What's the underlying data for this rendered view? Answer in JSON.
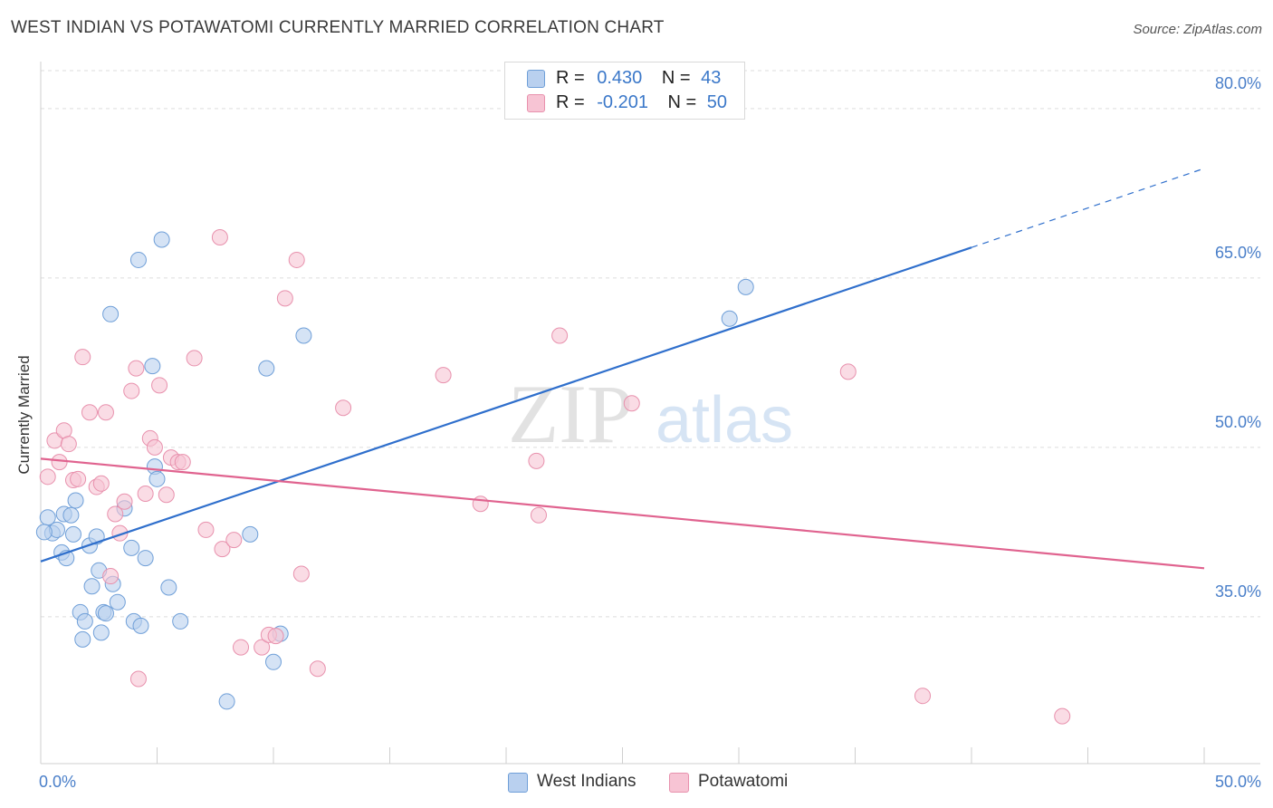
{
  "title": "WEST INDIAN VS POTAWATOMI CURRENTLY MARRIED CORRELATION CHART",
  "source": "Source: ZipAtlas.com",
  "watermark": {
    "zip": "ZIP",
    "atlas": "atlas"
  },
  "legend": {
    "rows": [
      {
        "r_label": "R =",
        "r_value": "0.430",
        "n_label": "N =",
        "n_value": "43"
      },
      {
        "r_label": "R =",
        "r_value": "-0.201",
        "n_label": "N =",
        "n_value": "50"
      }
    ]
  },
  "bottom_legend": [
    "West Indians",
    "Potawatomi"
  ],
  "colors": {
    "blue_fill": "#b9d0ef",
    "blue_stroke": "#6f9fd8",
    "blue_line": "#2f6fcc",
    "pink_fill": "#f7c4d4",
    "pink_stroke": "#e891ad",
    "pink_line": "#e0638f",
    "tick_text": "#4a7fc9",
    "grid": "#dddddd"
  },
  "chart_data": {
    "type": "scatter",
    "xlabel": "",
    "ylabel": "Currently Married",
    "xlim": [
      0,
      50
    ],
    "ylim": [
      22,
      84
    ],
    "x_tick_labels": [
      "0.0%",
      "50.0%"
    ],
    "y_ticks": [
      35,
      50,
      65,
      80
    ],
    "y_tick_labels": [
      "35.0%",
      "50.0%",
      "65.0%",
      "80.0%"
    ],
    "grid": true,
    "legend_placement": "top-center",
    "series": [
      {
        "name": "West Indians",
        "trend": {
          "x": [
            0,
            40
          ],
          "y": [
            39.9,
            67.7
          ],
          "dashed_extension_to": [
            50,
            74.7
          ]
        },
        "points": [
          [
            0.3,
            43.8
          ],
          [
            0.5,
            42.4
          ],
          [
            0.7,
            42.7
          ],
          [
            0.9,
            40.7
          ],
          [
            1.0,
            44.1
          ],
          [
            1.1,
            40.2
          ],
          [
            1.3,
            44.0
          ],
          [
            1.4,
            42.3
          ],
          [
            1.5,
            45.3
          ],
          [
            1.7,
            35.4
          ],
          [
            1.8,
            33.0
          ],
          [
            1.9,
            34.6
          ],
          [
            2.1,
            41.3
          ],
          [
            2.2,
            37.7
          ],
          [
            2.4,
            42.1
          ],
          [
            2.5,
            39.1
          ],
          [
            2.6,
            33.6
          ],
          [
            2.7,
            35.4
          ],
          [
            2.8,
            35.3
          ],
          [
            3.0,
            61.8
          ],
          [
            3.1,
            37.9
          ],
          [
            3.3,
            36.3
          ],
          [
            3.6,
            44.6
          ],
          [
            3.9,
            41.1
          ],
          [
            4.0,
            34.6
          ],
          [
            4.2,
            66.6
          ],
          [
            4.3,
            34.2
          ],
          [
            4.5,
            40.2
          ],
          [
            4.8,
            57.2
          ],
          [
            4.9,
            48.3
          ],
          [
            5.0,
            47.2
          ],
          [
            5.2,
            68.4
          ],
          [
            5.5,
            37.6
          ],
          [
            6.0,
            34.6
          ],
          [
            8.0,
            27.5
          ],
          [
            9.0,
            42.3
          ],
          [
            9.7,
            57.0
          ],
          [
            10.0,
            31.0
          ],
          [
            10.3,
            33.5
          ],
          [
            11.3,
            59.9
          ],
          [
            29.6,
            61.4
          ],
          [
            30.3,
            64.2
          ],
          [
            0.15,
            42.5
          ]
        ]
      },
      {
        "name": "Potawatomi",
        "trend": {
          "x": [
            0,
            50
          ],
          "y": [
            49.0,
            39.3
          ]
        },
        "points": [
          [
            0.3,
            47.4
          ],
          [
            0.6,
            50.6
          ],
          [
            0.8,
            48.7
          ],
          [
            1.0,
            51.5
          ],
          [
            1.2,
            50.3
          ],
          [
            1.4,
            47.1
          ],
          [
            1.6,
            47.2
          ],
          [
            1.8,
            58.0
          ],
          [
            2.1,
            53.1
          ],
          [
            2.4,
            46.5
          ],
          [
            2.6,
            46.8
          ],
          [
            2.8,
            53.1
          ],
          [
            3.0,
            38.6
          ],
          [
            3.2,
            44.1
          ],
          [
            3.4,
            42.4
          ],
          [
            3.6,
            45.2
          ],
          [
            3.9,
            55.0
          ],
          [
            4.1,
            57.0
          ],
          [
            4.2,
            29.5
          ],
          [
            4.5,
            45.9
          ],
          [
            4.7,
            50.8
          ],
          [
            4.9,
            50.0
          ],
          [
            5.1,
            55.5
          ],
          [
            5.4,
            45.8
          ],
          [
            5.6,
            49.1
          ],
          [
            5.9,
            48.7
          ],
          [
            6.1,
            48.7
          ],
          [
            6.6,
            57.9
          ],
          [
            7.1,
            42.7
          ],
          [
            7.7,
            68.6
          ],
          [
            7.8,
            41.0
          ],
          [
            8.3,
            41.8
          ],
          [
            8.6,
            32.3
          ],
          [
            9.5,
            32.3
          ],
          [
            9.8,
            33.4
          ],
          [
            10.1,
            33.3
          ],
          [
            10.5,
            63.2
          ],
          [
            11.0,
            66.6
          ],
          [
            11.2,
            38.8
          ],
          [
            11.9,
            30.4
          ],
          [
            13.0,
            53.5
          ],
          [
            17.3,
            56.4
          ],
          [
            18.9,
            45.0
          ],
          [
            21.3,
            48.8
          ],
          [
            21.4,
            44.0
          ],
          [
            22.3,
            59.9
          ],
          [
            25.4,
            53.9
          ],
          [
            34.7,
            56.7
          ],
          [
            37.9,
            28.0
          ],
          [
            43.9,
            26.2
          ]
        ]
      }
    ]
  }
}
